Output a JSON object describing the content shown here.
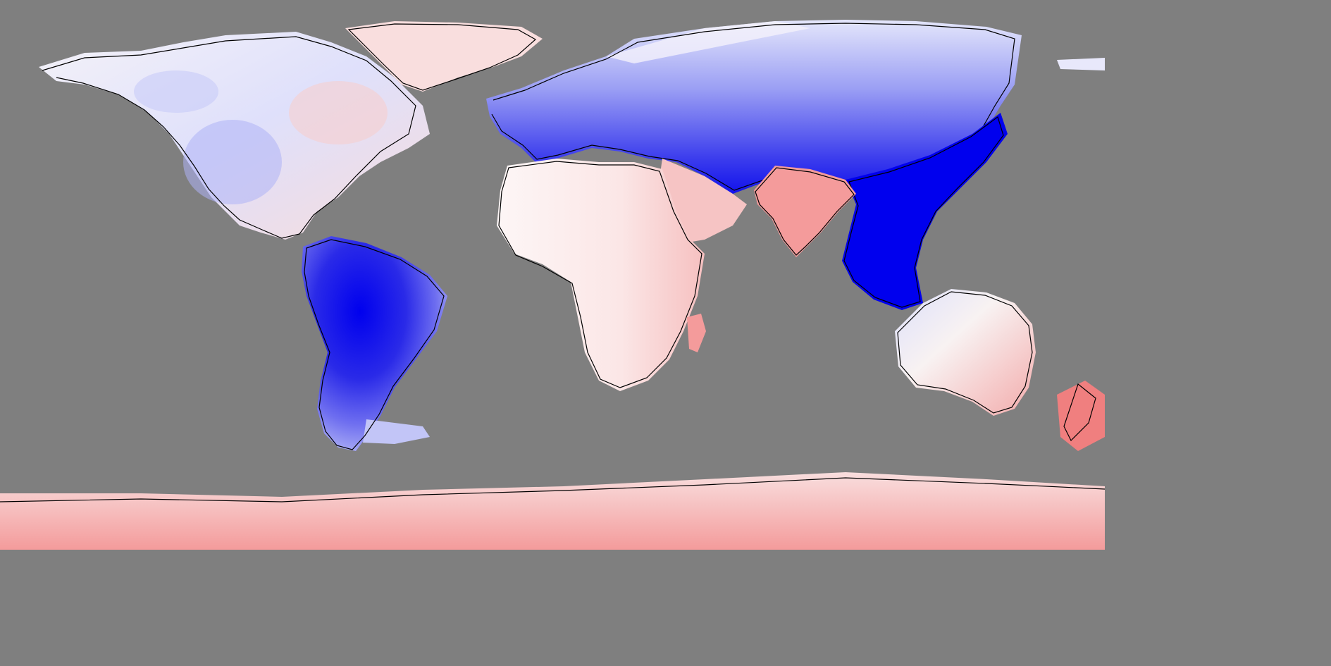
{
  "map": {
    "projection": "equirectangular",
    "background": "#7f7f7f",
    "coastline_color": "#000000",
    "palette": {
      "deep_blue": "#0000ee",
      "blue": "#3333ee",
      "mid_blue": "#6f6ff0",
      "light_blue": "#aeb2f6",
      "pale_blue": "#dcdffb",
      "near_white": "#f7f2f3",
      "pale_red": "#f9dede",
      "light_red": "#f6bdbd",
      "red": "#f49b9b",
      "deep_red": "#f07f7f"
    },
    "regions": [
      {
        "name": "north-america",
        "tone": "mixed"
      },
      {
        "name": "greenland",
        "tone": "pale_red"
      },
      {
        "name": "south-america",
        "tone": "deep_blue"
      },
      {
        "name": "europe-asia",
        "tone": "blue"
      },
      {
        "name": "southeast-asia",
        "tone": "deep_blue"
      },
      {
        "name": "india",
        "tone": "red"
      },
      {
        "name": "africa",
        "tone": "pale_red"
      },
      {
        "name": "madagascar",
        "tone": "red"
      },
      {
        "name": "australia",
        "tone": "mixed"
      },
      {
        "name": "new-zealand",
        "tone": "deep_red"
      },
      {
        "name": "antarctica",
        "tone": "red"
      }
    ]
  }
}
